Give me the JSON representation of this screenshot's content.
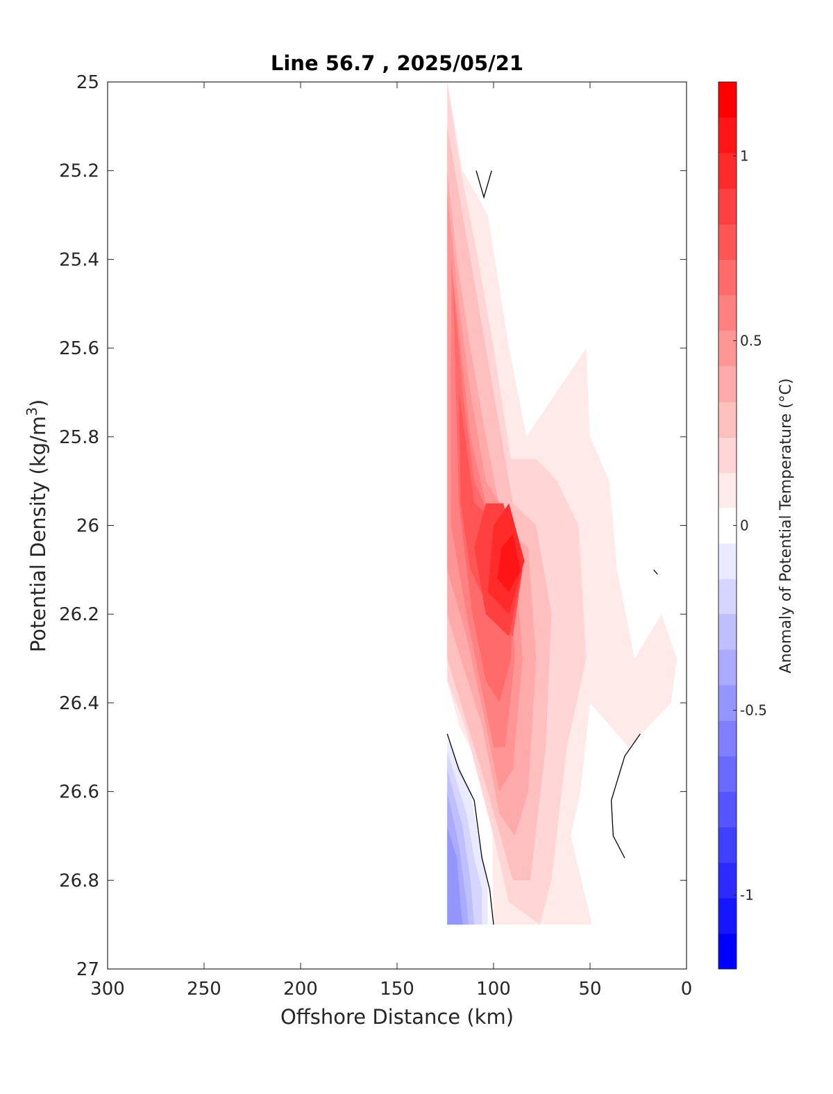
{
  "chart_data": {
    "type": "heatmap",
    "subtype": "filled-contour",
    "title": "Line 56.7 , 2025/05/21",
    "xlabel": "Offshore Distance (km)",
    "ylabel": "Potential Density (kg/m",
    "ylabel_superscript": "3",
    "ylabel_suffix": ")",
    "xlim": [
      300,
      0
    ],
    "x_reversed": true,
    "ylim": [
      25,
      27
    ],
    "y_reversed": true,
    "x_ticks": [
      300,
      250,
      200,
      150,
      100,
      50,
      0
    ],
    "y_ticks": [
      25,
      25.2,
      25.4,
      25.6,
      25.8,
      26,
      26.2,
      26.4,
      26.6,
      26.8,
      27
    ],
    "y_tick_labels": [
      "25",
      "25.2",
      "25.4",
      "25.6",
      "25.8",
      "26",
      "26.2",
      "26.4",
      "26.6",
      "26.8",
      "27"
    ],
    "grid": false,
    "colorbar": {
      "label": "Anomaly of Potential Temperature (°C)",
      "range": [
        -1.2,
        1.2
      ],
      "step": 0.1,
      "ticks": [
        -1,
        -0.5,
        0,
        0.5,
        1
      ],
      "tick_labels": [
        "-1",
        "-0.5",
        "0",
        "0.5",
        "1"
      ],
      "colors": [
        "#0000ff",
        "#1515ff",
        "#2b2bff",
        "#4040ff",
        "#5555ff",
        "#6a6aff",
        "#8080ff",
        "#9595ff",
        "#aaaaff",
        "#bfbfff",
        "#d5d5ff",
        "#eaeaff",
        "#ffffff",
        "#ffeaea",
        "#ffd5d5",
        "#ffbfbf",
        "#ffaaaa",
        "#ff9595",
        "#ff8080",
        "#ff6a6a",
        "#ff5555",
        "#ff4040",
        "#ff2b2b",
        "#ff1515",
        "#ff0000"
      ]
    },
    "data_extent": {
      "x": [
        0,
        124
      ],
      "y": [
        25,
        26.9
      ]
    },
    "contours": [
      {
        "level": 0.1,
        "points": [
          [
            124,
            25
          ],
          [
            116,
            25.2
          ],
          [
            103,
            25.3
          ],
          [
            92,
            25.6
          ],
          [
            83,
            25.8
          ],
          [
            52,
            25.6
          ],
          [
            50,
            25.8
          ],
          [
            40,
            25.9
          ],
          [
            36,
            26.1
          ],
          [
            27,
            26.3
          ],
          [
            13,
            26.2
          ],
          [
            5,
            26.3
          ],
          [
            8,
            26.4
          ],
          [
            30,
            26.5
          ],
          [
            50,
            26.4
          ],
          [
            55,
            26.6
          ],
          [
            60,
            26.7
          ],
          [
            49,
            26.9
          ],
          [
            100,
            26.9
          ],
          [
            101,
            26.6
          ],
          [
            118,
            26.45
          ],
          [
            124,
            26.35
          ]
        ]
      },
      {
        "level": 0.2,
        "points": [
          [
            124,
            25
          ],
          [
            117,
            25.2
          ],
          [
            108,
            25.4
          ],
          [
            100,
            25.6
          ],
          [
            91,
            25.85
          ],
          [
            78,
            25.85
          ],
          [
            67,
            25.9
          ],
          [
            56,
            26.0
          ],
          [
            52,
            26.3
          ],
          [
            62,
            26.5
          ],
          [
            70,
            26.8
          ],
          [
            76,
            26.9
          ],
          [
            92,
            26.85
          ],
          [
            100,
            26.7
          ],
          [
            115,
            26.45
          ],
          [
            124,
            26.35
          ]
        ]
      },
      {
        "level": 0.3,
        "points": [
          [
            124,
            25.1
          ],
          [
            116,
            25.3
          ],
          [
            108,
            25.5
          ],
          [
            100,
            25.7
          ],
          [
            90,
            25.95
          ],
          [
            78,
            26.0
          ],
          [
            70,
            26.2
          ],
          [
            73,
            26.5
          ],
          [
            81,
            26.8
          ],
          [
            90,
            26.8
          ],
          [
            103,
            26.6
          ],
          [
            117,
            26.4
          ],
          [
            124,
            26.3
          ]
        ]
      },
      {
        "level": 0.4,
        "points": [
          [
            124,
            25.2
          ],
          [
            119,
            25.4
          ],
          [
            112,
            25.6
          ],
          [
            104,
            25.8
          ],
          [
            95,
            26.0
          ],
          [
            82,
            26.05
          ],
          [
            78,
            26.3
          ],
          [
            82,
            26.6
          ],
          [
            89,
            26.7
          ],
          [
            97,
            26.65
          ],
          [
            106,
            26.45
          ],
          [
            117,
            26.3
          ],
          [
            124,
            26.2
          ]
        ]
      },
      {
        "level": 0.5,
        "points": [
          [
            124,
            25.25
          ],
          [
            118,
            25.5
          ],
          [
            112,
            25.7
          ],
          [
            104,
            25.9
          ],
          [
            90,
            26.0
          ],
          [
            85,
            26.3
          ],
          [
            90,
            26.55
          ],
          [
            97,
            26.6
          ],
          [
            104,
            26.45
          ],
          [
            114,
            26.25
          ],
          [
            124,
            26.1
          ]
        ]
      },
      {
        "level": 0.6,
        "points": [
          [
            122,
            25.4
          ],
          [
            117,
            25.6
          ],
          [
            112,
            25.8
          ],
          [
            104,
            25.95
          ],
          [
            92,
            26.05
          ],
          [
            89,
            26.3
          ],
          [
            94,
            26.5
          ],
          [
            100,
            26.5
          ],
          [
            107,
            26.35
          ],
          [
            114,
            26.2
          ],
          [
            122,
            26.0
          ]
        ]
      },
      {
        "level": 0.7,
        "points": [
          [
            121,
            25.45
          ],
          [
            116,
            25.7
          ],
          [
            110,
            25.9
          ],
          [
            100,
            26.0
          ],
          [
            90,
            26.1
          ],
          [
            91,
            26.3
          ],
          [
            97,
            26.4
          ],
          [
            104,
            26.35
          ],
          [
            111,
            26.2
          ],
          [
            118,
            25.95
          ]
        ]
      },
      {
        "level": 0.8,
        "points": [
          [
            118,
            25.7
          ],
          [
            110,
            25.95
          ],
          [
            96,
            26.0
          ],
          [
            85,
            26.1
          ],
          [
            90,
            26.25
          ],
          [
            101,
            26.2
          ],
          [
            112,
            26.1
          ],
          [
            117,
            25.95
          ]
        ]
      },
      {
        "level": 0.9,
        "points": [
          [
            104,
            25.95
          ],
          [
            95,
            25.95
          ],
          [
            85,
            26.1
          ],
          [
            92,
            26.25
          ],
          [
            104,
            26.2
          ],
          [
            110,
            26.05
          ]
        ]
      },
      {
        "level": 1.0,
        "points": [
          [
            100,
            26.0
          ],
          [
            92,
            25.95
          ],
          [
            84,
            26.08
          ],
          [
            92,
            26.2
          ],
          [
            103,
            26.15
          ]
        ]
      },
      {
        "level": 1.1,
        "points": [
          [
            96,
            26.05
          ],
          [
            90,
            26.02
          ],
          [
            86,
            26.1
          ],
          [
            92,
            26.15
          ],
          [
            98,
            26.12
          ]
        ]
      },
      {
        "level": -0.1,
        "points": [
          [
            124,
            26.48
          ],
          [
            112,
            26.6
          ],
          [
            108,
            26.7
          ],
          [
            103,
            26.8
          ],
          [
            103,
            26.9
          ],
          [
            124,
            26.9
          ]
        ]
      },
      {
        "level": -0.2,
        "points": [
          [
            124,
            26.51
          ],
          [
            114,
            26.65
          ],
          [
            110,
            26.75
          ],
          [
            106,
            26.82
          ],
          [
            106,
            26.9
          ],
          [
            124,
            26.9
          ]
        ]
      },
      {
        "level": -0.3,
        "points": [
          [
            124,
            26.55
          ],
          [
            116,
            26.68
          ],
          [
            112,
            26.8
          ],
          [
            110,
            26.9
          ],
          [
            124,
            26.9
          ]
        ]
      },
      {
        "level": -0.4,
        "points": [
          [
            124,
            26.6
          ],
          [
            118,
            26.72
          ],
          [
            114,
            26.85
          ],
          [
            113,
            26.9
          ],
          [
            124,
            26.9
          ]
        ]
      },
      {
        "level": -0.5,
        "points": [
          [
            124,
            26.68
          ],
          [
            119,
            26.75
          ],
          [
            117,
            26.86
          ],
          [
            116,
            26.9
          ],
          [
            124,
            26.9
          ]
        ]
      }
    ],
    "zero_lines": [
      [
        [
          124,
          26.47
        ],
        [
          118,
          26.55
        ],
        [
          110,
          26.62
        ],
        [
          106,
          26.75
        ],
        [
          102,
          26.82
        ],
        [
          100,
          26.9
        ]
      ],
      [
        [
          109,
          25.2
        ],
        [
          105,
          25.26
        ],
        [
          101,
          25.2
        ]
      ],
      [
        [
          24,
          26.47
        ],
        [
          32,
          26.52
        ],
        [
          39,
          26.62
        ],
        [
          38,
          26.7
        ],
        [
          32,
          26.75
        ]
      ],
      [
        [
          17,
          26.1
        ],
        [
          15,
          26.11
        ]
      ]
    ]
  }
}
